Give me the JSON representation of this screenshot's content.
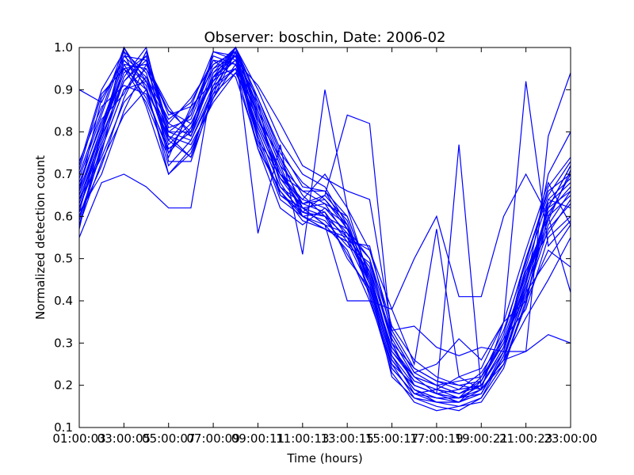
{
  "chart_data": {
    "type": "line",
    "title": "Observer: boschin, Date: 2006-02",
    "xlabel": "Time (hours)",
    "ylabel": "Normalized detection count",
    "x_tick_labels": [
      "01:00:03",
      "03:00:05",
      "05:00:07",
      "07:00:09",
      "09:00:11",
      "11:00:13",
      "13:00:15",
      "15:00:17",
      "17:00:19",
      "19:00:21",
      "21:00:23",
      "23:00:00"
    ],
    "y_tick_labels": [
      "0.1",
      "0.2",
      "0.3",
      "0.4",
      "0.5",
      "0.6",
      "0.7",
      "0.8",
      "0.9",
      "1.0"
    ],
    "xlim": [
      1,
      23
    ],
    "ylim": [
      0.1,
      1.0
    ],
    "grid": false,
    "line_color": "#0000ff",
    "x": [
      1,
      2,
      3,
      4,
      5,
      6,
      7,
      8,
      9,
      10,
      11,
      12,
      13,
      14,
      15,
      16,
      17,
      18,
      19,
      20,
      21,
      22,
      23
    ],
    "series": [
      {
        "values": [
          0.9,
          0.87,
          0.98,
          0.97,
          0.75,
          0.85,
          0.95,
          0.98,
          0.8,
          0.67,
          0.61,
          0.6,
          0.57,
          0.5,
          0.3,
          0.2,
          0.18,
          0.17,
          0.19,
          0.25,
          0.4,
          0.6,
          0.7
        ]
      },
      {
        "values": [
          0.55,
          0.68,
          0.7,
          0.67,
          0.62,
          0.62,
          0.93,
          1.0,
          0.85,
          0.72,
          0.6,
          0.57,
          0.55,
          0.52,
          0.34,
          0.26,
          0.22,
          0.2,
          0.19,
          0.26,
          0.36,
          0.45,
          0.55
        ]
      },
      {
        "values": [
          0.6,
          0.72,
          0.88,
          0.99,
          0.8,
          0.8,
          0.99,
          0.97,
          0.78,
          0.7,
          0.64,
          0.7,
          0.62,
          0.45,
          0.26,
          0.19,
          0.16,
          0.16,
          0.18,
          0.28,
          0.45,
          0.62,
          0.72
        ]
      },
      {
        "values": [
          0.65,
          0.8,
          0.95,
          0.9,
          0.72,
          0.78,
          0.9,
          0.95,
          0.76,
          0.62,
          0.58,
          0.62,
          0.58,
          0.42,
          0.24,
          0.18,
          0.19,
          0.22,
          0.24,
          0.35,
          0.52,
          0.68,
          0.58
        ]
      },
      {
        "values": [
          0.7,
          0.85,
          1.0,
          0.92,
          0.82,
          0.88,
          0.96,
          0.99,
          0.82,
          0.7,
          0.66,
          0.66,
          0.6,
          0.46,
          0.28,
          0.22,
          0.2,
          0.18,
          0.2,
          0.29,
          0.48,
          0.64,
          0.62
        ]
      },
      {
        "values": [
          0.58,
          0.76,
          0.9,
          0.95,
          0.85,
          0.82,
          0.92,
          1.0,
          0.88,
          0.75,
          0.68,
          0.64,
          0.57,
          0.44,
          0.22,
          0.17,
          0.15,
          0.14,
          0.17,
          0.27,
          0.43,
          0.58,
          0.66
        ]
      },
      {
        "values": [
          0.62,
          0.78,
          0.93,
          1.0,
          0.78,
          0.74,
          0.88,
          0.96,
          0.84,
          0.68,
          0.6,
          0.58,
          0.52,
          0.4,
          0.25,
          0.2,
          0.18,
          0.16,
          0.21,
          0.32,
          0.5,
          0.66,
          0.7
        ]
      },
      {
        "values": [
          0.68,
          0.82,
          0.96,
          0.88,
          0.76,
          0.8,
          0.94,
          0.98,
          0.79,
          0.65,
          0.62,
          0.63,
          0.55,
          0.48,
          0.3,
          0.24,
          0.21,
          0.19,
          0.23,
          0.31,
          0.38,
          0.55,
          0.6
        ]
      },
      {
        "values": [
          0.72,
          0.9,
          0.99,
          0.86,
          0.7,
          0.75,
          0.9,
          0.99,
          0.86,
          0.73,
          0.63,
          0.61,
          0.5,
          0.43,
          0.27,
          0.18,
          0.17,
          0.17,
          0.19,
          0.26,
          0.44,
          0.7,
          0.8
        ]
      },
      {
        "values": [
          0.64,
          0.74,
          0.87,
          0.93,
          0.83,
          0.87,
          0.97,
          0.93,
          0.77,
          0.66,
          0.59,
          0.57,
          0.54,
          0.47,
          0.32,
          0.23,
          0.2,
          0.21,
          0.22,
          0.3,
          0.42,
          0.5,
          0.58
        ]
      },
      {
        "values": [
          0.57,
          0.8,
          0.94,
          0.98,
          0.73,
          0.73,
          0.89,
          1.0,
          0.9,
          0.78,
          0.7,
          0.67,
          0.58,
          0.41,
          0.23,
          0.16,
          0.14,
          0.15,
          0.16,
          0.24,
          0.4,
          0.62,
          0.72
        ]
      },
      {
        "values": [
          0.66,
          0.88,
          0.97,
          0.92,
          0.8,
          0.84,
          0.98,
          0.96,
          0.81,
          0.69,
          0.64,
          0.62,
          0.56,
          0.45,
          0.29,
          0.21,
          0.19,
          0.18,
          0.2,
          0.28,
          0.47,
          0.6,
          0.65
        ]
      },
      {
        "values": [
          0.61,
          0.7,
          0.85,
          0.96,
          0.86,
          0.79,
          0.91,
          1.0,
          0.83,
          0.71,
          0.61,
          0.59,
          0.53,
          0.49,
          0.31,
          0.22,
          0.18,
          0.17,
          0.22,
          0.33,
          0.49,
          0.67,
          0.74
        ]
      },
      {
        "values": [
          0.69,
          0.84,
          0.99,
          0.94,
          0.77,
          0.82,
          0.93,
          0.95,
          0.8,
          0.67,
          0.63,
          0.65,
          0.59,
          0.44,
          0.26,
          0.19,
          0.17,
          0.16,
          0.18,
          0.27,
          0.41,
          0.57,
          0.63
        ]
      },
      {
        "values": [
          0.73,
          0.86,
          0.91,
          0.89,
          0.75,
          0.81,
          0.95,
          1.0,
          0.87,
          0.74,
          0.65,
          0.6,
          0.51,
          0.42,
          0.24,
          0.18,
          0.16,
          0.15,
          0.17,
          0.25,
          0.39,
          0.64,
          0.69
        ]
      },
      {
        "values": [
          0.59,
          0.77,
          0.92,
          0.97,
          0.84,
          0.86,
          0.99,
          0.98,
          0.82,
          0.7,
          0.62,
          0.58,
          0.56,
          0.5,
          0.33,
          0.24,
          0.21,
          0.2,
          0.21,
          0.3,
          0.46,
          0.61,
          0.67
        ]
      },
      {
        "values": [
          0.63,
          0.79,
          1.0,
          0.9,
          0.79,
          0.77,
          0.87,
          0.94,
          0.85,
          0.72,
          0.66,
          0.63,
          0.6,
          0.46,
          0.27,
          0.2,
          0.18,
          0.19,
          0.2,
          0.29,
          0.45,
          0.59,
          0.71
        ]
      },
      {
        "values": [
          0.67,
          0.83,
          0.89,
          0.99,
          0.81,
          0.83,
          0.96,
          0.99,
          0.78,
          0.64,
          0.6,
          0.61,
          0.54,
          0.43,
          0.25,
          0.17,
          0.16,
          0.16,
          0.19,
          0.26,
          0.42,
          0.63,
          0.68
        ]
      },
      {
        "values": [
          0.71,
          0.89,
          0.95,
          0.87,
          0.74,
          0.86,
          0.92,
          0.97,
          0.88,
          0.76,
          0.67,
          0.66,
          0.57,
          0.47,
          0.28,
          0.21,
          0.19,
          0.17,
          0.18,
          0.28,
          0.5,
          0.65,
          0.73
        ]
      },
      {
        "values": [
          0.6,
          0.75,
          0.96,
          0.95,
          0.82,
          0.79,
          0.94,
          1.0,
          0.84,
          0.7,
          0.63,
          0.64,
          0.58,
          0.45,
          0.29,
          0.22,
          0.2,
          0.18,
          0.21,
          0.31,
          0.47,
          0.56,
          0.64
        ]
      },
      {
        "values": [
          0.65,
          0.81,
          0.98,
          0.93,
          0.78,
          0.84,
          0.97,
          0.96,
          0.81,
          0.69,
          0.62,
          0.6,
          0.55,
          0.44,
          0.26,
          0.19,
          0.17,
          0.17,
          0.2,
          0.29,
          0.44,
          0.62,
          0.66
        ]
      },
      {
        "values": [
          0.62,
          0.76,
          0.9,
          0.92,
          0.76,
          0.8,
          0.93,
          0.97,
          0.91,
          0.82,
          0.72,
          0.69,
          0.66,
          0.64,
          0.33,
          0.34,
          0.29,
          0.27,
          0.29,
          0.28,
          0.28,
          0.32,
          0.3
        ]
      },
      {
        "values": [
          0.58,
          0.73,
          0.84,
          0.9,
          0.8,
          0.78,
          0.89,
          0.94,
          0.83,
          0.74,
          0.62,
          0.58,
          0.4,
          0.4,
          0.38,
          0.5,
          0.6,
          0.41,
          0.41,
          0.6,
          0.7,
          0.6,
          0.42
        ]
      },
      {
        "values": [
          0.66,
          0.81,
          0.95,
          0.96,
          0.85,
          0.8,
          0.93,
          0.98,
          0.76,
          0.66,
          0.6,
          0.57,
          0.54,
          0.53,
          0.32,
          0.23,
          0.25,
          0.31,
          0.26,
          0.35,
          0.92,
          0.53,
          0.59
        ]
      },
      {
        "values": [
          0.61,
          0.8,
          0.97,
          0.91,
          0.7,
          0.76,
          0.88,
          0.99,
          0.56,
          0.77,
          0.51,
          0.9,
          0.62,
          0.52,
          0.38,
          0.25,
          0.57,
          0.22,
          0.19,
          0.26,
          0.28,
          0.79,
          0.94
        ]
      },
      {
        "values": [
          0.64,
          0.79,
          0.92,
          0.98,
          0.79,
          0.74,
          0.91,
          0.95,
          0.87,
          0.65,
          0.61,
          0.65,
          0.84,
          0.82,
          0.3,
          0.2,
          0.18,
          0.77,
          0.19,
          0.35,
          0.4,
          0.52,
          0.48
        ]
      }
    ]
  }
}
